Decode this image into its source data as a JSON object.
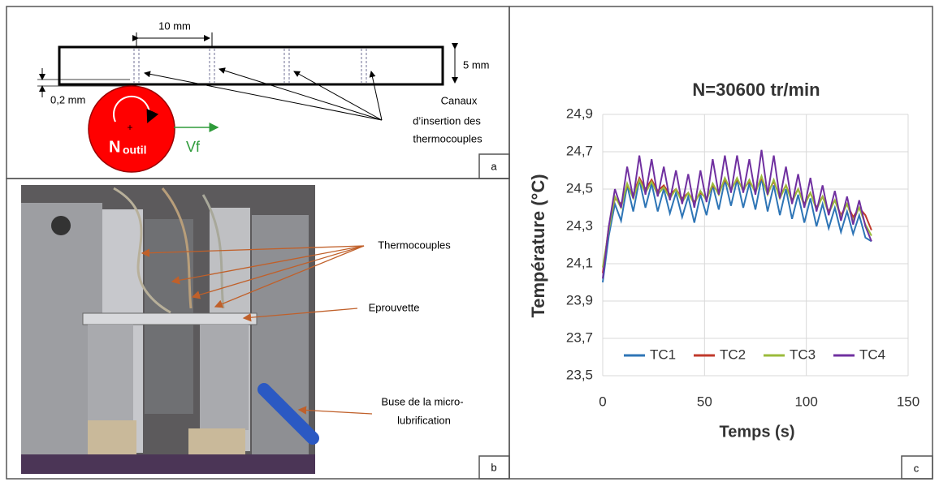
{
  "panel_a": {
    "label": "a",
    "dimension_width": "10 mm",
    "dimension_height": "5 mm",
    "dimension_offset": "0,2 mm",
    "tool_n": "N",
    "tool_sub": "outil",
    "feed": "Vf",
    "channels_label": [
      "Canaux",
      "d’insertion des",
      "thermocouples"
    ]
  },
  "panel_b": {
    "label": "b",
    "callouts": [
      "Thermocouples",
      "Eprouvette",
      "Buse de la micro-",
      "lubrification"
    ]
  },
  "panel_c": {
    "label": "c"
  },
  "chart_data": {
    "type": "line",
    "title": "N=30600 tr/min",
    "x_label": "Temps (s)",
    "y_label": "Température (°C)",
    "x": [
      0,
      3,
      6,
      9,
      12,
      15,
      18,
      21,
      24,
      27,
      30,
      33,
      36,
      39,
      42,
      45,
      48,
      51,
      54,
      57,
      60,
      63,
      66,
      69,
      72,
      75,
      78,
      81,
      84,
      87,
      90,
      93,
      96,
      99,
      102,
      105,
      108,
      111,
      114,
      117,
      120,
      123,
      126,
      129,
      132
    ],
    "series": [
      {
        "name": "TC1",
        "color": "#2e75b6",
        "values": [
          24.0,
          24.25,
          24.42,
          24.33,
          24.52,
          24.38,
          24.55,
          24.4,
          24.53,
          24.38,
          24.5,
          24.37,
          24.48,
          24.35,
          24.46,
          24.32,
          24.47,
          24.36,
          24.52,
          24.39,
          24.55,
          24.41,
          24.55,
          24.4,
          24.53,
          24.39,
          24.56,
          24.38,
          24.52,
          24.36,
          24.5,
          24.34,
          24.47,
          24.32,
          24.45,
          24.3,
          24.42,
          24.29,
          24.4,
          24.27,
          24.38,
          24.26,
          24.36,
          24.24,
          24.22
        ]
      },
      {
        "name": "TC2",
        "color": "#c0392b",
        "values": [
          24.05,
          24.3,
          24.45,
          24.42,
          24.52,
          24.47,
          24.56,
          24.5,
          24.55,
          24.49,
          24.52,
          24.47,
          24.5,
          24.45,
          24.48,
          24.43,
          24.48,
          24.45,
          24.52,
          24.48,
          24.55,
          24.5,
          24.55,
          24.5,
          24.54,
          24.49,
          24.56,
          24.48,
          24.54,
          24.46,
          24.52,
          24.44,
          24.5,
          24.42,
          24.48,
          24.4,
          24.46,
          24.38,
          24.44,
          24.36,
          24.42,
          24.35,
          24.4,
          24.36,
          24.28
        ]
      },
      {
        "name": "TC3",
        "color": "#9bbb3b",
        "values": [
          24.08,
          24.28,
          24.46,
          24.4,
          24.53,
          24.45,
          24.55,
          24.48,
          24.54,
          24.47,
          24.51,
          24.45,
          24.5,
          24.43,
          24.48,
          24.42,
          24.49,
          24.44,
          24.53,
          24.47,
          24.56,
          24.49,
          24.56,
          24.49,
          24.55,
          24.48,
          24.57,
          24.47,
          24.55,
          24.45,
          24.52,
          24.43,
          24.5,
          24.41,
          24.48,
          24.39,
          24.46,
          24.37,
          24.44,
          24.35,
          24.42,
          24.33,
          24.4,
          24.31,
          24.25
        ]
      },
      {
        "name": "TC4",
        "color": "#7030a0",
        "values": [
          24.02,
          24.3,
          24.5,
          24.4,
          24.62,
          24.45,
          24.68,
          24.47,
          24.66,
          24.46,
          24.62,
          24.44,
          24.6,
          24.42,
          24.58,
          24.4,
          24.6,
          24.43,
          24.66,
          24.47,
          24.68,
          24.48,
          24.68,
          24.48,
          24.66,
          24.47,
          24.71,
          24.47,
          24.68,
          24.45,
          24.62,
          24.42,
          24.58,
          24.4,
          24.56,
          24.38,
          24.52,
          24.36,
          24.49,
          24.33,
          24.46,
          24.31,
          24.44,
          24.3,
          24.22
        ]
      }
    ],
    "xlim": [
      0,
      150
    ],
    "xticks": [
      0,
      50,
      100,
      150
    ],
    "ylim": [
      23.5,
      24.9
    ],
    "yticks": [
      {
        "value": 23.5,
        "label": "23,5"
      },
      {
        "value": 23.7,
        "label": "23,7"
      },
      {
        "value": 23.9,
        "label": "23,9"
      },
      {
        "value": 24.1,
        "label": "24,1"
      },
      {
        "value": 24.3,
        "label": "24,3"
      },
      {
        "value": 24.5,
        "label": "24,5"
      },
      {
        "value": 24.7,
        "label": "24,7"
      },
      {
        "value": 24.9,
        "label": "24,9"
      }
    ],
    "grid": true
  }
}
